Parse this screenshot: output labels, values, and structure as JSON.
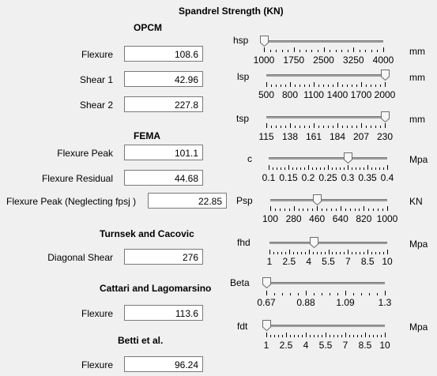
{
  "title": "Spandrel Strength (KN)",
  "sections": {
    "opcm": "OPCM",
    "fema": "FEMA",
    "turnsek": "Turnsek and Cacovic",
    "cattari": "Cattari and Lagomarsino",
    "betti": "Betti et al."
  },
  "fields": [
    {
      "label": "Flexure",
      "value": "108.6"
    },
    {
      "label": "Shear 1",
      "value": "42.96"
    },
    {
      "label": "Shear 2",
      "value": "227.8"
    },
    {
      "label": "Flexure Peak",
      "value": "101.1"
    },
    {
      "label": "Flexure Residual",
      "value": "44.68"
    },
    {
      "label": "Flexure Peak (Neglecting fpsj )",
      "value": "22.85"
    },
    {
      "label": "Diagonal Shear",
      "value": "276"
    },
    {
      "label": "Flexure",
      "value": "113.6"
    },
    {
      "label": "Flexure",
      "value": "96.24"
    }
  ],
  "sliders": [
    {
      "name": "hsp",
      "unit": "mm",
      "min": 1000,
      "max": 4000,
      "value": 1000,
      "ticks": [
        "1000",
        "1750",
        "2500",
        "3250",
        "4000"
      ]
    },
    {
      "name": "lsp",
      "unit": "mm",
      "min": 500,
      "max": 2000,
      "value": 2000,
      "ticks": [
        "500",
        "800",
        "1100",
        "1400",
        "1700",
        "2000"
      ]
    },
    {
      "name": "tsp",
      "unit": "mm",
      "min": 115,
      "max": 230,
      "value": 230,
      "ticks": [
        "115",
        "138",
        "161",
        "184",
        "207",
        "230"
      ]
    },
    {
      "name": "c",
      "unit": "Mpa",
      "min": 0.1,
      "max": 0.4,
      "value": 0.3,
      "ticks": [
        "0.1",
        "0.15",
        "0.2",
        "0.25",
        "0.3",
        "0.35",
        "0.4"
      ]
    },
    {
      "name": "Psp",
      "unit": "KN",
      "min": 100,
      "max": 1000,
      "value": 460,
      "ticks": [
        "100",
        "280",
        "460",
        "640",
        "820",
        "1000"
      ]
    },
    {
      "name": "fhd",
      "unit": "Mpa",
      "min": 1,
      "max": 10,
      "value": 4.4,
      "ticks": [
        "1",
        "2.5",
        "4",
        "5.5",
        "7",
        "8.5",
        "10"
      ]
    },
    {
      "name": "Beta",
      "unit": "",
      "min": 0.67,
      "max": 1.3,
      "value": 0.67,
      "ticks": [
        "0.67",
        "0.88",
        "1.09",
        "1.3"
      ]
    },
    {
      "name": "fdt",
      "unit": "Mpa",
      "min": 1,
      "max": 10,
      "value": 1,
      "ticks": [
        "1",
        "2.5",
        "4",
        "5.5",
        "7",
        "8.5",
        "10"
      ]
    }
  ]
}
